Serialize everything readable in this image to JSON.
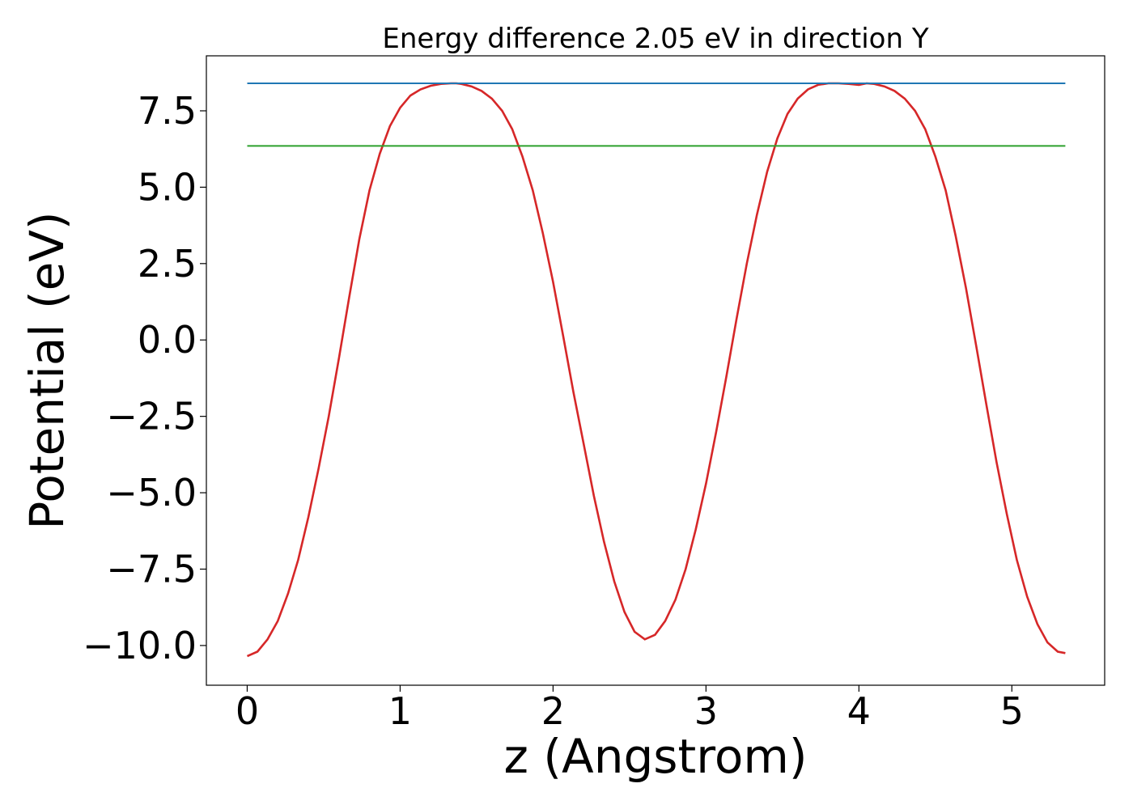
{
  "chart_data": {
    "type": "line",
    "title": "Energy difference 2.05 eV in direction Y",
    "xlabel": "z (Angstrom)",
    "ylabel": "Potential (eV)",
    "xlim": [
      -0.267,
      5.607
    ],
    "ylim": [
      -11.3,
      9.3
    ],
    "xticks": [
      0,
      1,
      2,
      3,
      4,
      5
    ],
    "yticks": [
      -10.0,
      -7.5,
      -5.0,
      -2.5,
      0.0,
      2.5,
      5.0,
      7.5
    ],
    "ytick_labels": [
      "−10.0",
      "−7.5",
      "−5.0",
      "−2.5",
      "0.0",
      "2.5",
      "5.0",
      "7.5"
    ],
    "xtick_labels": [
      "0",
      "1",
      "2",
      "3",
      "4",
      "5"
    ],
    "grid": false,
    "series": [
      {
        "color": "#d62728",
        "x": [
          0.0,
          0.067,
          0.133,
          0.2,
          0.267,
          0.333,
          0.4,
          0.467,
          0.533,
          0.6,
          0.667,
          0.733,
          0.8,
          0.867,
          0.933,
          1.0,
          1.067,
          1.133,
          1.2,
          1.267,
          1.333,
          1.367,
          1.4,
          1.467,
          1.533,
          1.6,
          1.667,
          1.733,
          1.8,
          1.867,
          1.933,
          2.0,
          2.067,
          2.133,
          2.2,
          2.267,
          2.333,
          2.4,
          2.467,
          2.533,
          2.6,
          2.667,
          2.733,
          2.8,
          2.867,
          2.933,
          3.0,
          3.067,
          3.133,
          3.2,
          3.267,
          3.333,
          3.4,
          3.467,
          3.533,
          3.6,
          3.667,
          3.733,
          3.8,
          3.867,
          3.933,
          4.0,
          4.05,
          4.1,
          4.167,
          4.233,
          4.3,
          4.367,
          4.433,
          4.5,
          4.567,
          4.633,
          4.7,
          4.767,
          4.833,
          4.9,
          4.967,
          5.033,
          5.1,
          5.167,
          5.233,
          5.3,
          5.35
        ],
        "y": [
          -10.35,
          -10.2,
          -9.8,
          -9.2,
          -8.3,
          -7.2,
          -5.8,
          -4.2,
          -2.5,
          -0.6,
          1.4,
          3.3,
          4.9,
          6.1,
          7.0,
          7.6,
          8.0,
          8.2,
          8.32,
          8.38,
          8.4,
          8.4,
          8.38,
          8.3,
          8.15,
          7.9,
          7.5,
          6.9,
          6.0,
          4.9,
          3.5,
          1.9,
          0.1,
          -1.7,
          -3.4,
          -5.1,
          -6.6,
          -7.9,
          -8.9,
          -9.55,
          -9.8,
          -9.65,
          -9.2,
          -8.5,
          -7.5,
          -6.2,
          -4.7,
          -3.0,
          -1.2,
          0.7,
          2.5,
          4.1,
          5.5,
          6.6,
          7.4,
          7.9,
          8.2,
          8.35,
          8.4,
          8.4,
          8.38,
          8.35,
          8.4,
          8.38,
          8.3,
          8.15,
          7.9,
          7.5,
          6.9,
          6.0,
          4.9,
          3.4,
          1.7,
          -0.2,
          -2.1,
          -4.0,
          -5.7,
          -7.2,
          -8.4,
          -9.3,
          -9.9,
          -10.2,
          -10.25
        ]
      },
      {
        "color": "#1f77b4",
        "x": [
          0.0,
          5.35
        ],
        "y": [
          8.4,
          8.4
        ]
      },
      {
        "color": "#2ca02c",
        "x": [
          0.0,
          5.35
        ],
        "y": [
          6.35,
          6.35
        ]
      }
    ]
  }
}
